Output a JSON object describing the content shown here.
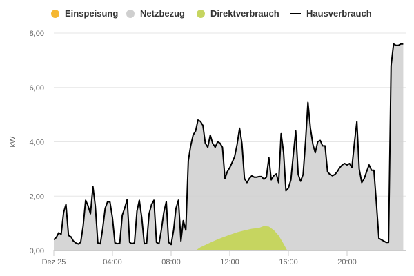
{
  "chart_data": {
    "type": "area",
    "ylabel": "kW",
    "ylim": [
      0,
      8
    ],
    "y_ticks": [
      "0,00",
      "2,00",
      "4,00",
      "6,00",
      "8,00"
    ],
    "xlim_hours": [
      0,
      24
    ],
    "x_ticks": [
      {
        "hour": 0,
        "label": "Dez 25"
      },
      {
        "hour": 4,
        "label": "04:00"
      },
      {
        "hour": 8,
        "label": "08:00"
      },
      {
        "hour": 12,
        "label": "12:00"
      },
      {
        "hour": 16,
        "label": "16:00"
      },
      {
        "hour": 20,
        "label": "20:00"
      }
    ],
    "grid": true,
    "legend_position": "top",
    "series": [
      {
        "name": "Einspeisung",
        "color": "#f5b731",
        "style": "dot",
        "x": [],
        "y": []
      },
      {
        "name": "Netzbezug",
        "color": "#cfcfcf",
        "style": "dot",
        "x": [
          0,
          0.17,
          0.33,
          0.5,
          0.67,
          0.83,
          1.0,
          1.17,
          1.33,
          1.5,
          1.67,
          1.83,
          2.0,
          2.17,
          2.33,
          2.5,
          2.67,
          2.83,
          3.0,
          3.17,
          3.33,
          3.5,
          3.67,
          3.83,
          4.0,
          4.17,
          4.33,
          4.5,
          4.67,
          4.83,
          5.0,
          5.17,
          5.33,
          5.5,
          5.67,
          5.83,
          6.0,
          6.17,
          6.33,
          6.5,
          6.67,
          6.83,
          7.0,
          7.17,
          7.33,
          7.5,
          7.67,
          7.83,
          8.0,
          8.17,
          8.33,
          8.5,
          8.67,
          8.83,
          9.0,
          9.17,
          9.33,
          9.5,
          9.67,
          9.83,
          10.0,
          10.17,
          10.33,
          10.5,
          10.67,
          10.83,
          11.0,
          11.17,
          11.33,
          11.5,
          11.67,
          11.83,
          12.0,
          12.17,
          12.33,
          12.5,
          12.67,
          12.83,
          13.0,
          13.17,
          13.33,
          13.5,
          13.67,
          13.83,
          14.0,
          14.17,
          14.33,
          14.5,
          14.67,
          14.83,
          15.0,
          15.17,
          15.33,
          15.5,
          15.67,
          15.83,
          16.0,
          16.17,
          16.33,
          16.5,
          16.67,
          16.83,
          17.0,
          17.17,
          17.33,
          17.5,
          17.67,
          17.83,
          18.0,
          18.17,
          18.33,
          18.5,
          18.67,
          18.83,
          19.0,
          19.17,
          19.33,
          19.5,
          19.67,
          19.83,
          20.0,
          20.17,
          20.33,
          20.5,
          20.67,
          20.83,
          21.0,
          21.17,
          21.33,
          21.5,
          21.67,
          21.83,
          22.0,
          22.17,
          22.33,
          22.5,
          22.67,
          22.83,
          23.0,
          23.17,
          23.33,
          23.5,
          23.67,
          23.83
        ],
        "y": [
          0.4,
          0.48,
          0.65,
          0.6,
          1.4,
          1.7,
          0.55,
          0.5,
          0.35,
          0.28,
          0.24,
          0.3,
          0.9,
          1.85,
          1.65,
          1.35,
          2.35,
          1.65,
          0.28,
          0.25,
          0.8,
          1.55,
          1.8,
          1.78,
          1.2,
          0.28,
          0.25,
          0.27,
          1.3,
          1.55,
          1.88,
          0.3,
          0.25,
          0.28,
          1.45,
          1.85,
          1.2,
          0.25,
          0.27,
          1.35,
          1.7,
          1.85,
          0.3,
          0.25,
          0.75,
          1.4,
          1.8,
          0.3,
          0.22,
          0.75,
          1.55,
          1.85,
          0.35,
          1.1,
          0.75,
          3.3,
          3.85,
          4.25,
          4.4,
          4.8,
          4.75,
          4.6,
          3.95,
          3.8,
          4.25,
          3.95,
          3.8,
          4.0,
          3.95,
          3.8,
          2.65,
          2.9,
          3.05,
          3.25,
          3.45,
          3.9,
          4.5,
          3.95,
          2.65,
          2.5,
          2.65,
          2.75,
          2.7,
          2.7,
          2.72,
          2.72,
          2.62,
          2.7,
          3.42,
          2.6,
          2.75,
          2.82,
          2.5,
          4.3,
          3.6,
          2.2,
          2.3,
          2.6,
          3.5,
          4.4,
          2.8,
          2.55,
          2.8,
          4.05,
          5.45,
          4.5,
          3.9,
          3.6,
          4.0,
          4.05,
          3.85,
          3.85,
          2.9,
          2.8,
          2.75,
          2.8,
          2.9,
          3.05,
          3.15,
          3.2,
          3.15,
          3.2,
          3.05,
          3.95,
          4.75,
          3.0,
          2.5,
          2.65,
          2.9,
          3.15,
          2.95,
          2.95,
          1.75,
          0.45,
          0.4,
          0.35,
          0.3,
          0.3,
          6.8,
          7.6,
          7.55,
          7.55,
          7.6,
          7.6
        ]
      },
      {
        "name": "Direktverbrauch",
        "color": "#c6d560",
        "style": "dot",
        "x": [
          9.67,
          10.0,
          10.5,
          11.0,
          11.5,
          12.0,
          12.5,
          13.0,
          13.5,
          14.0,
          14.33,
          14.67,
          15.0,
          15.33,
          15.67,
          15.92
        ],
        "y": [
          0.0,
          0.12,
          0.25,
          0.37,
          0.48,
          0.58,
          0.67,
          0.74,
          0.8,
          0.83,
          0.9,
          0.88,
          0.75,
          0.55,
          0.25,
          0.0
        ]
      },
      {
        "name": "Hausverbrauch",
        "color": "#000000",
        "style": "line",
        "x": [],
        "y": []
      }
    ]
  }
}
